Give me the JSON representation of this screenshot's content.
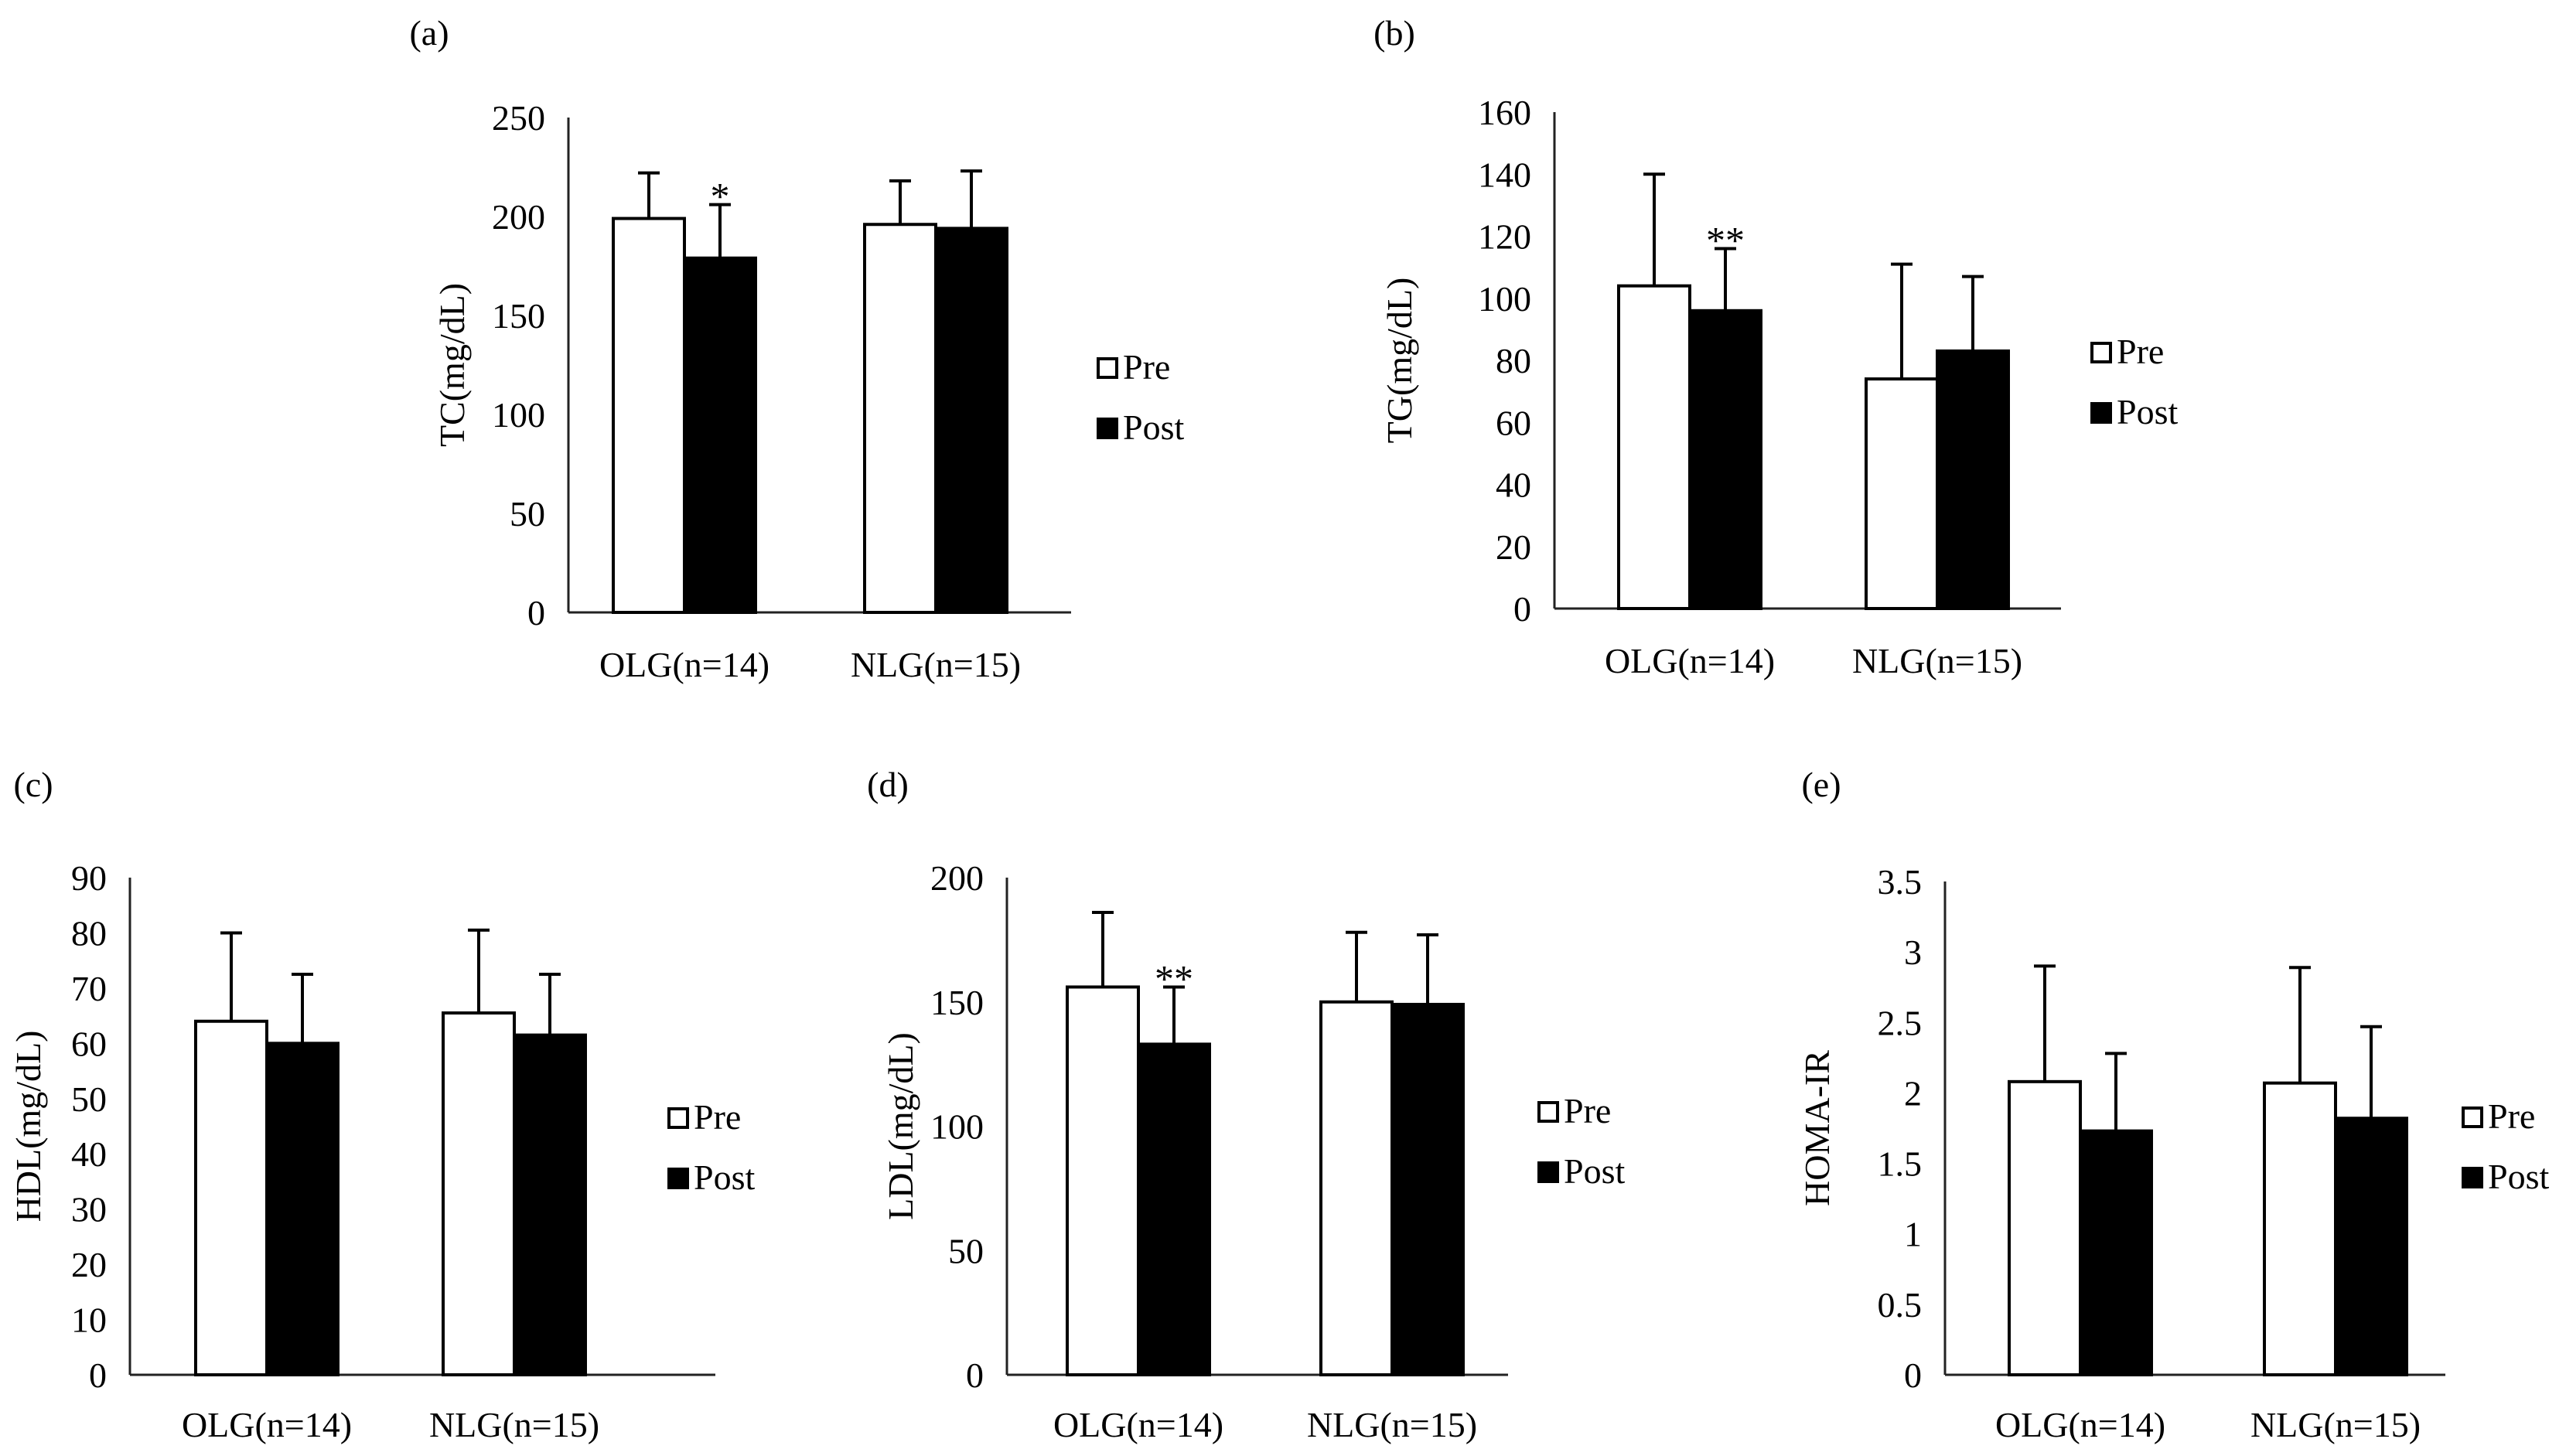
{
  "legend": {
    "pre": "Pre",
    "post": "Post"
  },
  "colors": {
    "pre": "#ffffff",
    "post": "#000000"
  },
  "chart_data": [
    {
      "id": "a",
      "panel_label": "(a)",
      "type": "bar",
      "categories": [
        "OLG(n=14)",
        "NLG(n=15)"
      ],
      "ylabel": "TC(mg/dL)",
      "ylim": [
        0,
        250
      ],
      "yticks": [
        "0",
        "50",
        "100",
        "150",
        "200",
        "250"
      ],
      "series": [
        {
          "name": "Pre",
          "values": [
            199,
            196
          ],
          "errors": [
            23,
            22
          ],
          "marks": [
            "",
            ""
          ]
        },
        {
          "name": "Post",
          "values": [
            179,
            194
          ],
          "errors": [
            27,
            29
          ],
          "marks": [
            "*",
            ""
          ]
        }
      ]
    },
    {
      "id": "b",
      "panel_label": "(b)",
      "type": "bar",
      "categories": [
        "OLG(n=14)",
        "NLG(n=15)"
      ],
      "ylabel": "TG(mg/dL)",
      "ylim": [
        0,
        160
      ],
      "yticks": [
        "0",
        "20",
        "40",
        "60",
        "80",
        "100",
        "120",
        "140",
        "160"
      ],
      "series": [
        {
          "name": "Pre",
          "values": [
            104,
            74
          ],
          "errors": [
            36,
            37
          ],
          "marks": [
            "",
            ""
          ]
        },
        {
          "name": "Post",
          "values": [
            96,
            83
          ],
          "errors": [
            20,
            24
          ],
          "marks": [
            "**",
            ""
          ]
        }
      ]
    },
    {
      "id": "c",
      "panel_label": "(c)",
      "type": "bar",
      "categories": [
        "OLG(n=14)",
        "NLG(n=15)"
      ],
      "ylabel": "HDL(mg/dL)",
      "ylim": [
        0,
        90
      ],
      "yticks": [
        "0",
        "10",
        "20",
        "30",
        "40",
        "50",
        "60",
        "70",
        "80",
        "90"
      ],
      "series": [
        {
          "name": "Pre",
          "values": [
            64,
            65.5
          ],
          "errors": [
            16,
            15
          ],
          "marks": [
            "",
            ""
          ]
        },
        {
          "name": "Post",
          "values": [
            60,
            61.5
          ],
          "errors": [
            12.5,
            11
          ],
          "marks": [
            "",
            ""
          ]
        }
      ]
    },
    {
      "id": "d",
      "panel_label": "(d)",
      "type": "bar",
      "categories": [
        "OLG(n=14)",
        "NLG(n=15)"
      ],
      "ylabel": "LDL(mg/dL)",
      "ylim": [
        0,
        200
      ],
      "yticks": [
        "0",
        "50",
        "100",
        "150",
        "200"
      ],
      "series": [
        {
          "name": "Pre",
          "values": [
            156,
            150
          ],
          "errors": [
            30,
            28
          ],
          "marks": [
            "",
            ""
          ]
        },
        {
          "name": "Post",
          "values": [
            133,
            149
          ],
          "errors": [
            23,
            28
          ],
          "marks": [
            "**",
            ""
          ]
        }
      ]
    },
    {
      "id": "e",
      "panel_label": "(e)",
      "type": "bar",
      "categories": [
        "OLG(n=14)",
        "NLG(n=15)"
      ],
      "ylabel": "HOMA-IR",
      "ylim": [
        0,
        3.5
      ],
      "yticks": [
        "0",
        "0.5",
        "1",
        "1.5",
        "2",
        "2.5",
        "3",
        "3.5"
      ],
      "series": [
        {
          "name": "Pre",
          "values": [
            2.08,
            2.07
          ],
          "errors": [
            0.82,
            0.82
          ],
          "marks": [
            "",
            ""
          ]
        },
        {
          "name": "Post",
          "values": [
            1.73,
            1.82
          ],
          "errors": [
            0.55,
            0.65
          ],
          "marks": [
            "",
            ""
          ]
        }
      ]
    }
  ]
}
